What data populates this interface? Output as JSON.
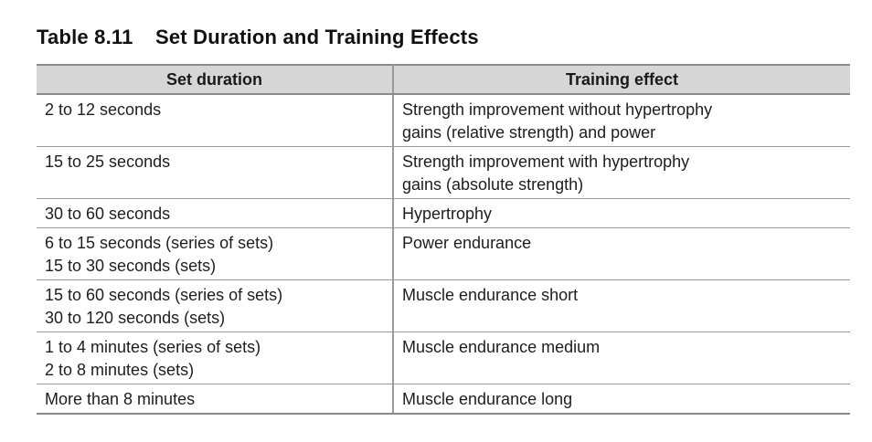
{
  "table": {
    "number": "Table 8.11",
    "title": "Set Duration and Training Effects",
    "headers": [
      "Set duration",
      "Training effect"
    ],
    "rows": [
      {
        "duration": [
          "2 to 12 seconds"
        ],
        "effect": [
          "Strength improvement without hypertrophy",
          "gains (relative strength) and power"
        ]
      },
      {
        "duration": [
          "15 to 25 seconds"
        ],
        "effect": [
          "Strength improvement with hypertrophy",
          "gains (absolute strength)"
        ]
      },
      {
        "duration": [
          "30 to 60 seconds"
        ],
        "effect": [
          "Hypertrophy"
        ]
      },
      {
        "duration": [
          "6 to 15 seconds (series of sets)",
          "15 to 30 seconds (sets)"
        ],
        "effect": [
          "Power endurance"
        ]
      },
      {
        "duration": [
          "15 to 60 seconds (series of sets)",
          "30 to 120 seconds (sets)"
        ],
        "effect": [
          "Muscle endurance short"
        ]
      },
      {
        "duration": [
          "1 to 4 minutes (series of sets)",
          "2 to 8 minutes (sets)"
        ],
        "effect": [
          "Muscle endurance medium"
        ]
      },
      {
        "duration": [
          "More than 8 minutes"
        ],
        "effect": [
          "Muscle endurance long"
        ]
      }
    ]
  }
}
